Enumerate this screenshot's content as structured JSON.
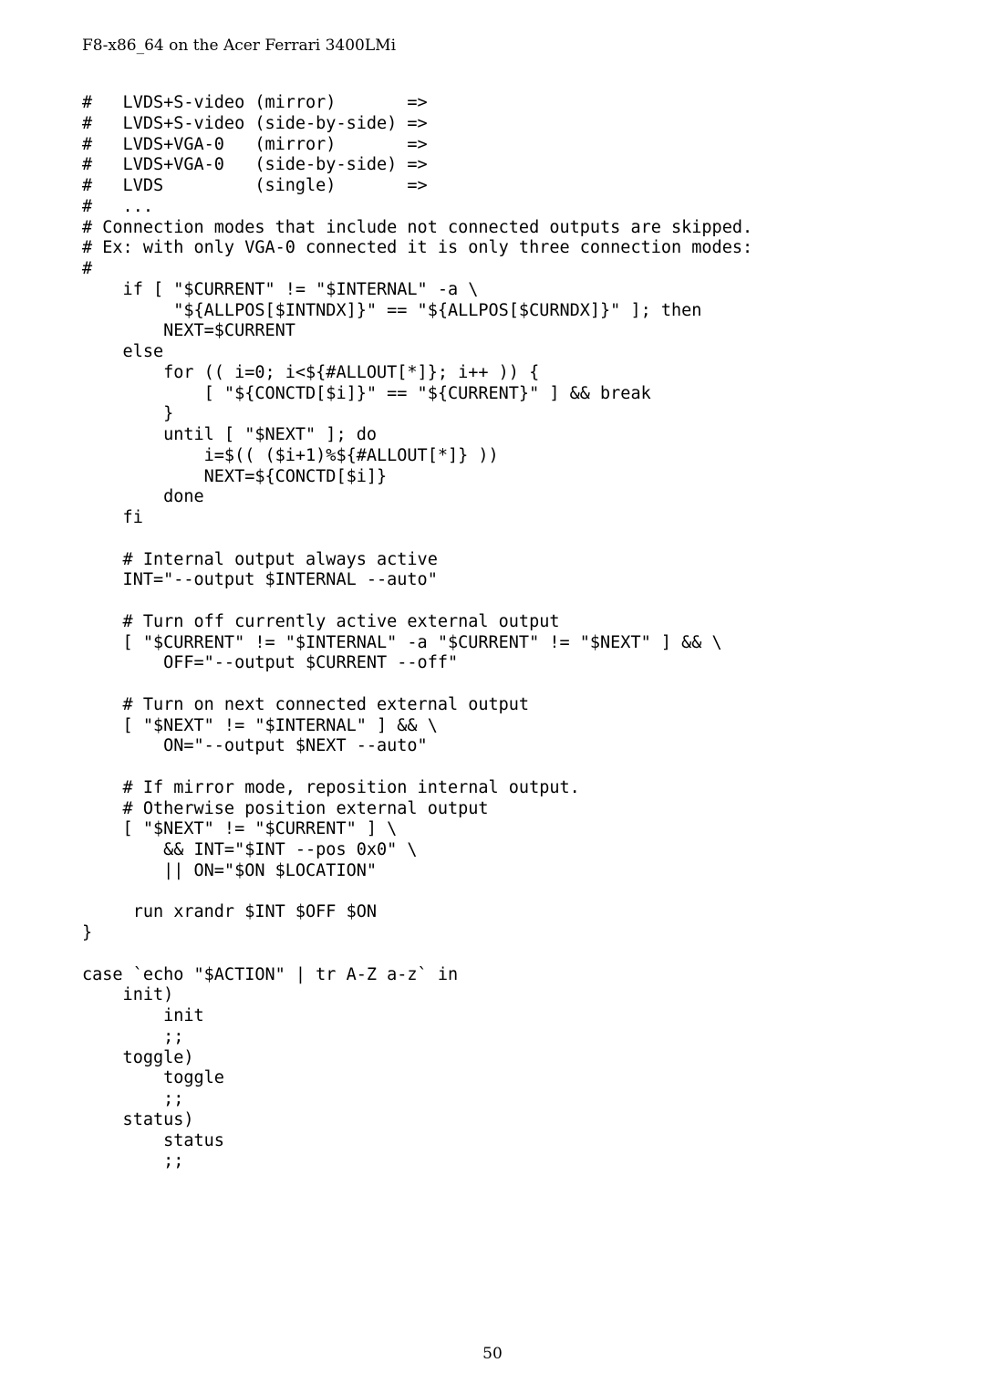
{
  "header": "F8-x86_64 on the Acer Ferrari 3400LMi",
  "page_number": "50",
  "code_text": "#   LVDS+S-video (mirror)       =>\n#   LVDS+S-video (side-by-side) =>\n#   LVDS+VGA-0   (mirror)       =>\n#   LVDS+VGA-0   (side-by-side) =>\n#   LVDS         (single)       =>\n#   ...\n# Connection modes that include not connected outputs are skipped.\n# Ex: with only VGA-0 connected it is only three connection modes:\n#\n    if [ \"$CURRENT\" != \"$INTERNAL\" -a \\\n         \"${ALLPOS[$INTNDX]}\" == \"${ALLPOS[$CURNDX]}\" ]; then\n        NEXT=$CURRENT\n    else\n        for (( i=0; i<${#ALLOUT[*]}; i++ )) {\n            [ \"${CONCTD[$i]}\" == \"${CURRENT}\" ] && break\n        }\n        until [ \"$NEXT\" ]; do\n            i=$(( ($i+1)%${#ALLOUT[*]} ))\n            NEXT=${CONCTD[$i]}\n        done\n    fi\n\n    # Internal output always active\n    INT=\"--output $INTERNAL --auto\"\n\n    # Turn off currently active external output\n    [ \"$CURRENT\" != \"$INTERNAL\" -a \"$CURRENT\" != \"$NEXT\" ] && \\\n        OFF=\"--output $CURRENT --off\"\n\n    # Turn on next connected external output\n    [ \"$NEXT\" != \"$INTERNAL\" ] && \\\n        ON=\"--output $NEXT --auto\"\n\n    # If mirror mode, reposition internal output.\n    # Otherwise position external output\n    [ \"$NEXT\" != \"$CURRENT\" ] \\\n        && INT=\"$INT --pos 0x0\" \\\n        || ON=\"$ON $LOCATION\"\n\n     run xrandr $INT $OFF $ON\n}\n\ncase `echo \"$ACTION\" | tr A-Z a-z` in\n    init)\n        init\n        ;;\n    toggle)\n        toggle\n        ;;\n    status)\n        status\n        ;;"
}
